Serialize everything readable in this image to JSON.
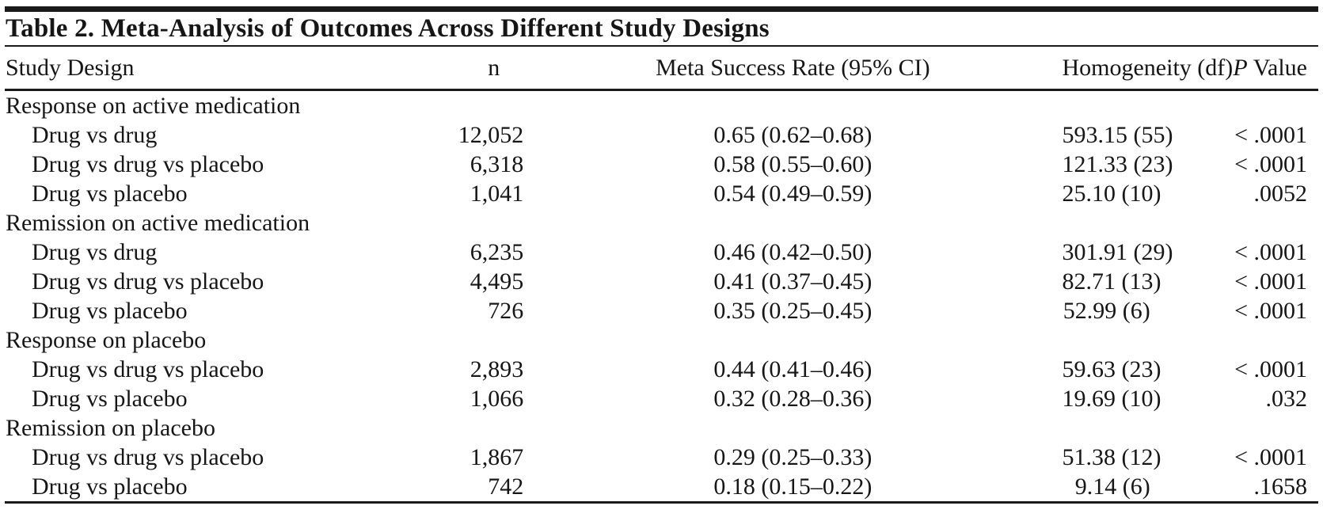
{
  "table": {
    "title": "Table 2. Meta-Analysis of Outcomes Across Different Study Designs",
    "columns": [
      "Study Design",
      "n",
      "Meta Success Rate (95% CI)",
      "Homogeneity (df)",
      "P Value"
    ],
    "sections": [
      {
        "header": "Response on active medication",
        "rows": [
          {
            "design": "Drug vs drug",
            "n": "12,052",
            "rate": "0.65 (0.62–0.68)",
            "homogeneity": "593.15 (55)",
            "p": "< .0001"
          },
          {
            "design": "Drug vs drug vs placebo",
            "n": "6,318",
            "rate": "0.58 (0.55–0.60)",
            "homogeneity": "121.33 (23)",
            "p": "< .0001"
          },
          {
            "design": "Drug vs placebo",
            "n": "1,041",
            "rate": "0.54 (0.49–0.59)",
            "homogeneity": "25.10 (10)",
            "p": ".0052"
          }
        ]
      },
      {
        "header": "Remission on active medication",
        "rows": [
          {
            "design": "Drug vs drug",
            "n": "6,235",
            "rate": "0.46 (0.42–0.50)",
            "homogeneity": "301.91 (29)",
            "p": "< .0001"
          },
          {
            "design": "Drug vs drug vs placebo",
            "n": "4,495",
            "rate": "0.41 (0.37–0.45)",
            "homogeneity": "82.71 (13)",
            "p": "< .0001"
          },
          {
            "design": "Drug vs placebo",
            "n": "726",
            "rate": "0.35 (0.25–0.45)",
            "homogeneity": "52.99 (6)",
            "p": "< .0001"
          }
        ]
      },
      {
        "header": "Response on placebo",
        "rows": [
          {
            "design": "Drug vs drug vs placebo",
            "n": "2,893",
            "rate": "0.44 (0.41–0.46)",
            "homogeneity": "59.63 (23)",
            "p": "< .0001"
          },
          {
            "design": "Drug vs placebo",
            "n": "1,066",
            "rate": "0.32 (0.28–0.36)",
            "homogeneity": "19.69 (10)",
            "p": ".032"
          }
        ]
      },
      {
        "header": "Remission on placebo",
        "rows": [
          {
            "design": "Drug vs drug vs placebo",
            "n": "1,867",
            "rate": "0.29 (0.25–0.33)",
            "homogeneity": "51.38 (12)",
            "p": "< .0001"
          },
          {
            "design": "Drug vs placebo",
            "n": "742",
            "rate": "0.18 (0.15–0.22)",
            "homogeneity": "9.14 (6)",
            "p": ".1658"
          }
        ]
      }
    ]
  },
  "chart_data": {
    "type": "table",
    "title": "Table 2. Meta-Analysis of Outcomes Across Different Study Designs",
    "columns": [
      "Study Design",
      "n",
      "Meta Success Rate (95% CI)",
      "Homogeneity (df)",
      "P Value"
    ],
    "rows": [
      [
        "Response on active medication",
        "",
        "",
        "",
        ""
      ],
      [
        "Drug vs drug",
        "12,052",
        "0.65 (0.62–0.68)",
        "593.15 (55)",
        "< .0001"
      ],
      [
        "Drug vs drug vs placebo",
        "6,318",
        "0.58 (0.55–0.60)",
        "121.33 (23)",
        "< .0001"
      ],
      [
        "Drug vs placebo",
        "1,041",
        "0.54 (0.49–0.59)",
        "25.10 (10)",
        ".0052"
      ],
      [
        "Remission on active medication",
        "",
        "",
        "",
        ""
      ],
      [
        "Drug vs drug",
        "6,235",
        "0.46 (0.42–0.50)",
        "301.91 (29)",
        "< .0001"
      ],
      [
        "Drug vs drug vs placebo",
        "4,495",
        "0.41 (0.37–0.45)",
        "82.71 (13)",
        "< .0001"
      ],
      [
        "Drug vs placebo",
        "726",
        "0.35 (0.25–0.45)",
        "52.99 (6)",
        "< .0001"
      ],
      [
        "Response on placebo",
        "",
        "",
        "",
        ""
      ],
      [
        "Drug vs drug vs placebo",
        "2,893",
        "0.44 (0.41–0.46)",
        "59.63 (23)",
        "< .0001"
      ],
      [
        "Drug vs placebo",
        "1,066",
        "0.32 (0.28–0.36)",
        "19.69 (10)",
        ".032"
      ],
      [
        "Remission on placebo",
        "",
        "",
        "",
        ""
      ],
      [
        "Drug vs drug vs placebo",
        "1,867",
        "0.29 (0.25–0.33)",
        "51.38 (12)",
        "< .0001"
      ],
      [
        "Drug vs placebo",
        "742",
        "0.18 (0.15–0.22)",
        "9.14 (6)",
        ".1658"
      ]
    ]
  },
  "colors": {
    "rule": "#1a1a1a",
    "text": "#161616",
    "background": "#ffffff"
  }
}
